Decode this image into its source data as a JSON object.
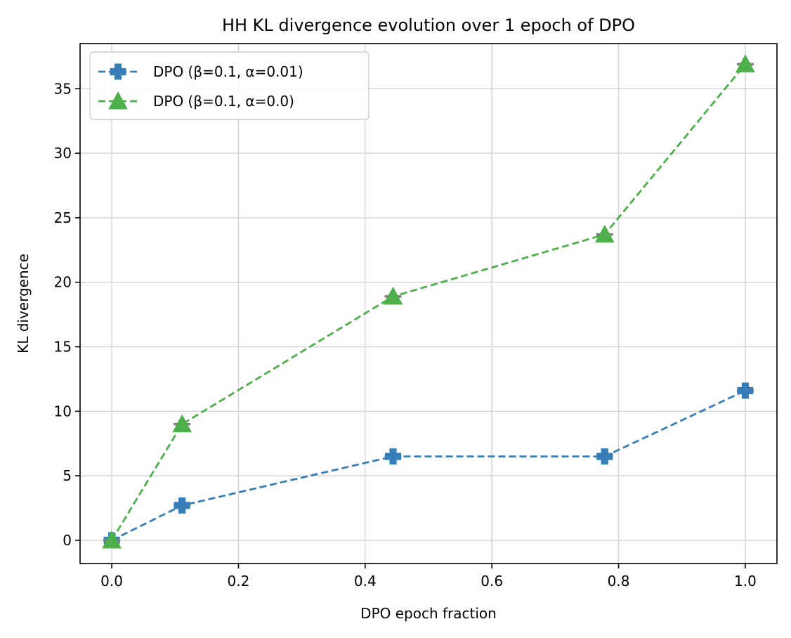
{
  "chart_data": {
    "type": "line",
    "title": "HH KL divergence evolution over 1 epoch of DPO",
    "xlabel": "DPO epoch fraction",
    "ylabel": "KL divergence",
    "xlim": [
      -0.05,
      1.05
    ],
    "ylim": [
      -1.8,
      38.5
    ],
    "xticks": [
      0.0,
      0.2,
      0.4,
      0.6,
      0.8,
      1.0
    ],
    "xtick_labels": [
      "0.0",
      "0.2",
      "0.4",
      "0.6",
      "0.8",
      "1.0"
    ],
    "yticks": [
      0,
      5,
      10,
      15,
      20,
      25,
      30,
      35
    ],
    "ytick_labels": [
      "0",
      "5",
      "10",
      "15",
      "20",
      "25",
      "30",
      "35"
    ],
    "grid": true,
    "legend_position": "top-left",
    "series": [
      {
        "name": "DPO (β=0.1, α=0.01)",
        "color": "#377eb8",
        "marker": "plus",
        "linestyle": "dashed",
        "x": [
          0.0,
          0.111,
          0.444,
          0.778,
          1.0
        ],
        "y": [
          0.0,
          2.7,
          6.5,
          6.5,
          11.6
        ]
      },
      {
        "name": "DPO (β=0.1, α=0.0)",
        "color": "#4daf4a",
        "marker": "triangle",
        "linestyle": "dashed",
        "x": [
          0.0,
          0.111,
          0.444,
          0.778,
          1.0
        ],
        "y": [
          0.0,
          9.0,
          18.9,
          23.7,
          36.9
        ]
      }
    ]
  }
}
